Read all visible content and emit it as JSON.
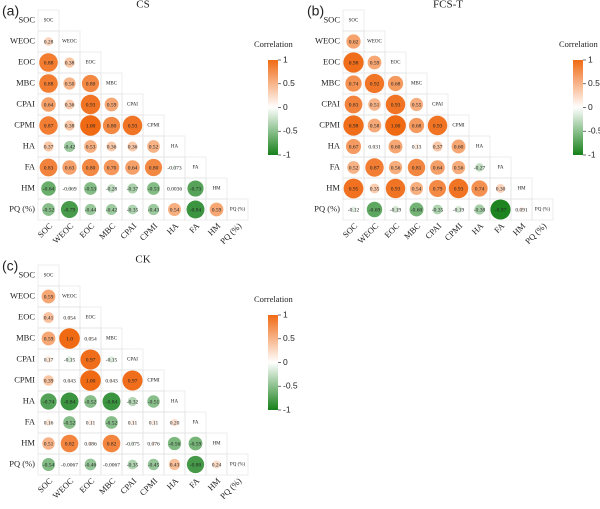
{
  "chart_data": [
    {
      "type": "correlation",
      "panel_label": "(a)",
      "title": "CS",
      "categories": [
        "SOC",
        "WEOC",
        "EOC",
        "MBC",
        "CPAI",
        "CPMI",
        "HA",
        "FA",
        "HM",
        "PQ (%)"
      ],
      "values": [
        [
          0.28
        ],
        [
          0.88,
          0.38
        ],
        [
          0.88,
          0.5,
          0.8
        ],
        [
          0.64,
          0.36,
          0.93,
          0.59
        ],
        [
          0.87,
          0.38,
          1.0,
          0.8,
          0.93
        ],
        [
          0.37,
          -0.42,
          0.53,
          0.36,
          0.36,
          0.52
        ],
        [
          0.83,
          0.63,
          0.8,
          0.7,
          0.64,
          0.8,
          -0.073
        ],
        [
          -0.64,
          -0.069,
          -0.53,
          -0.28,
          -0.37,
          -0.53,
          0.0036,
          -0.73
        ],
        [
          -0.52,
          -0.79,
          -0.44,
          -0.42,
          -0.35,
          -0.43,
          0.54,
          -0.84,
          0.59
        ]
      ],
      "value_labels": [
        [
          "0.28"
        ],
        [
          "0.88",
          "0.38"
        ],
        [
          "0.88",
          "0.50",
          "0.80"
        ],
        [
          "0.64",
          "0.36",
          "0.93",
          "0.59"
        ],
        [
          "0.87",
          "0.38",
          "1.00",
          "0.80",
          "0.93"
        ],
        [
          "0.37",
          "-0.42",
          "0.53",
          "0.36",
          "0.36",
          "0.52"
        ],
        [
          "0.83",
          "0.63",
          "0.80",
          "0.70",
          "0.64",
          "0.80",
          "-0.073"
        ],
        [
          "-0.64",
          "-0.069",
          "-0.53",
          "-0.28",
          "-0.37",
          "-0.53",
          "0.0036",
          "-0.73"
        ],
        [
          "-0.52",
          "-0.79",
          "-0.44",
          "-0.42",
          "-0.35",
          "-0.43",
          "0.54",
          "-0.84",
          "0.59"
        ]
      ],
      "colorbar": {
        "label": "Correlation",
        "lim": [
          -1,
          1
        ],
        "ticks": [
          1,
          0.5,
          0,
          -0.5,
          -1
        ]
      },
      "colors": {
        "positive": "#f06a14",
        "zero": "#ffffff",
        "negative": "#16801a"
      }
    },
    {
      "type": "correlation",
      "panel_label": "(b)",
      "title": "FCS-T",
      "categories": [
        "SOC",
        "WEOC",
        "EOC",
        "MBC",
        "CPAI",
        "CPMI",
        "HA",
        "FA",
        "HM",
        "PQ (%)"
      ],
      "values": [
        [
          0.62
        ],
        [
          0.98,
          0.59
        ],
        [
          0.74,
          0.92,
          0.68
        ],
        [
          0.83,
          0.51,
          0.93,
          0.55
        ],
        [
          0.98,
          0.58,
          1.0,
          0.68,
          0.93
        ],
        [
          0.67,
          0.031,
          0.6,
          0.13,
          0.37,
          0.6
        ],
        [
          0.52,
          0.87,
          0.56,
          0.81,
          0.64,
          0.56,
          -0.27
        ],
        [
          0.95,
          0.35,
          0.93,
          0.54,
          0.79,
          0.93,
          0.74,
          0.3
        ],
        [
          -0.12,
          -0.69,
          -0.19,
          -0.6,
          -0.35,
          -0.19,
          -0.38,
          -0.97,
          0.091
        ]
      ],
      "value_labels": [
        [
          "0.62"
        ],
        [
          "0.98",
          "0.59"
        ],
        [
          "0.74",
          "0.92",
          "0.68"
        ],
        [
          "0.83",
          "0.51",
          "0.93",
          "0.55"
        ],
        [
          "0.98",
          "0.58",
          "1.00",
          "0.68",
          "0.93"
        ],
        [
          "0.67",
          "0.031",
          "0.60",
          "0.13",
          "0.37",
          "0.60"
        ],
        [
          "0.52",
          "0.87",
          "0.56",
          "0.81",
          "0.64",
          "0.56",
          "-0.27"
        ],
        [
          "0.95",
          "0.35",
          "0.93",
          "0.54",
          "0.79",
          "0.93",
          "0.74",
          "0.30"
        ],
        [
          "-0.12",
          "-0.69",
          "-0.19",
          "-0.60",
          "-0.35",
          "-0.19",
          "-0.38",
          "-0.97",
          "0.091"
        ]
      ],
      "colorbar": {
        "label": "Correlation",
        "lim": [
          -1,
          1
        ],
        "ticks": [
          1,
          0.5,
          0,
          -0.5,
          -1
        ]
      },
      "colors": {
        "positive": "#f06a14",
        "zero": "#ffffff",
        "negative": "#16801a"
      }
    },
    {
      "type": "correlation",
      "panel_label": "(c)",
      "title": "CK",
      "categories": [
        "SOC",
        "WEOC",
        "EOC",
        "MBC",
        "CPAI",
        "CPMI",
        "HA",
        "FA",
        "HM",
        "PQ (%)"
      ],
      "values": [
        [
          0.59
        ],
        [
          0.41,
          0.054
        ],
        [
          0.59,
          1.0,
          0.054
        ],
        [
          0.17,
          -0.15,
          0.97,
          -0.15
        ],
        [
          0.39,
          0.043,
          1.0,
          0.043,
          0.97
        ],
        [
          -0.74,
          -0.84,
          -0.52,
          -0.84,
          -0.32,
          -0.51
        ],
        [
          0.16,
          -0.52,
          0.11,
          -0.52,
          0.11,
          0.11,
          0.2
        ],
        [
          0.51,
          0.82,
          0.086,
          0.82,
          -0.075,
          0.076,
          -0.56,
          -0.59
        ],
        [
          -0.54,
          -0.0067,
          -0.46,
          -0.0067,
          -0.35,
          -0.45,
          0.43,
          -0.8,
          0.24
        ]
      ],
      "value_labels": [
        [
          "0.59"
        ],
        [
          "0.41",
          "0.054"
        ],
        [
          "0.59",
          "1.0",
          "0.054"
        ],
        [
          "0.17",
          "-0.15",
          "0.97",
          "-0.15"
        ],
        [
          "0.39",
          "0.043",
          "1.00",
          "0.043",
          "0.97"
        ],
        [
          "-0.74",
          "-0.84",
          "-0.52",
          "-0.84",
          "-0.32",
          "-0.51"
        ],
        [
          "0.16",
          "-0.52",
          "0.11",
          "-0.52",
          "0.11",
          "0.11",
          "0.20"
        ],
        [
          "0.51",
          "0.82",
          "0.086",
          "0.82",
          "-0.075",
          "0.076",
          "-0.56",
          "-0.59"
        ],
        [
          "-0.54",
          "-0.0067",
          "-0.46",
          "-0.0067",
          "-0.35",
          "-0.45",
          "0.43",
          "-0.80",
          "0.24"
        ]
      ],
      "colorbar": {
        "label": "Correlation",
        "lim": [
          -1,
          1
        ],
        "ticks": [
          1,
          0.5,
          0,
          -0.5,
          -1
        ]
      },
      "colors": {
        "positive": "#f06a14",
        "zero": "#ffffff",
        "negative": "#16801a"
      }
    }
  ]
}
